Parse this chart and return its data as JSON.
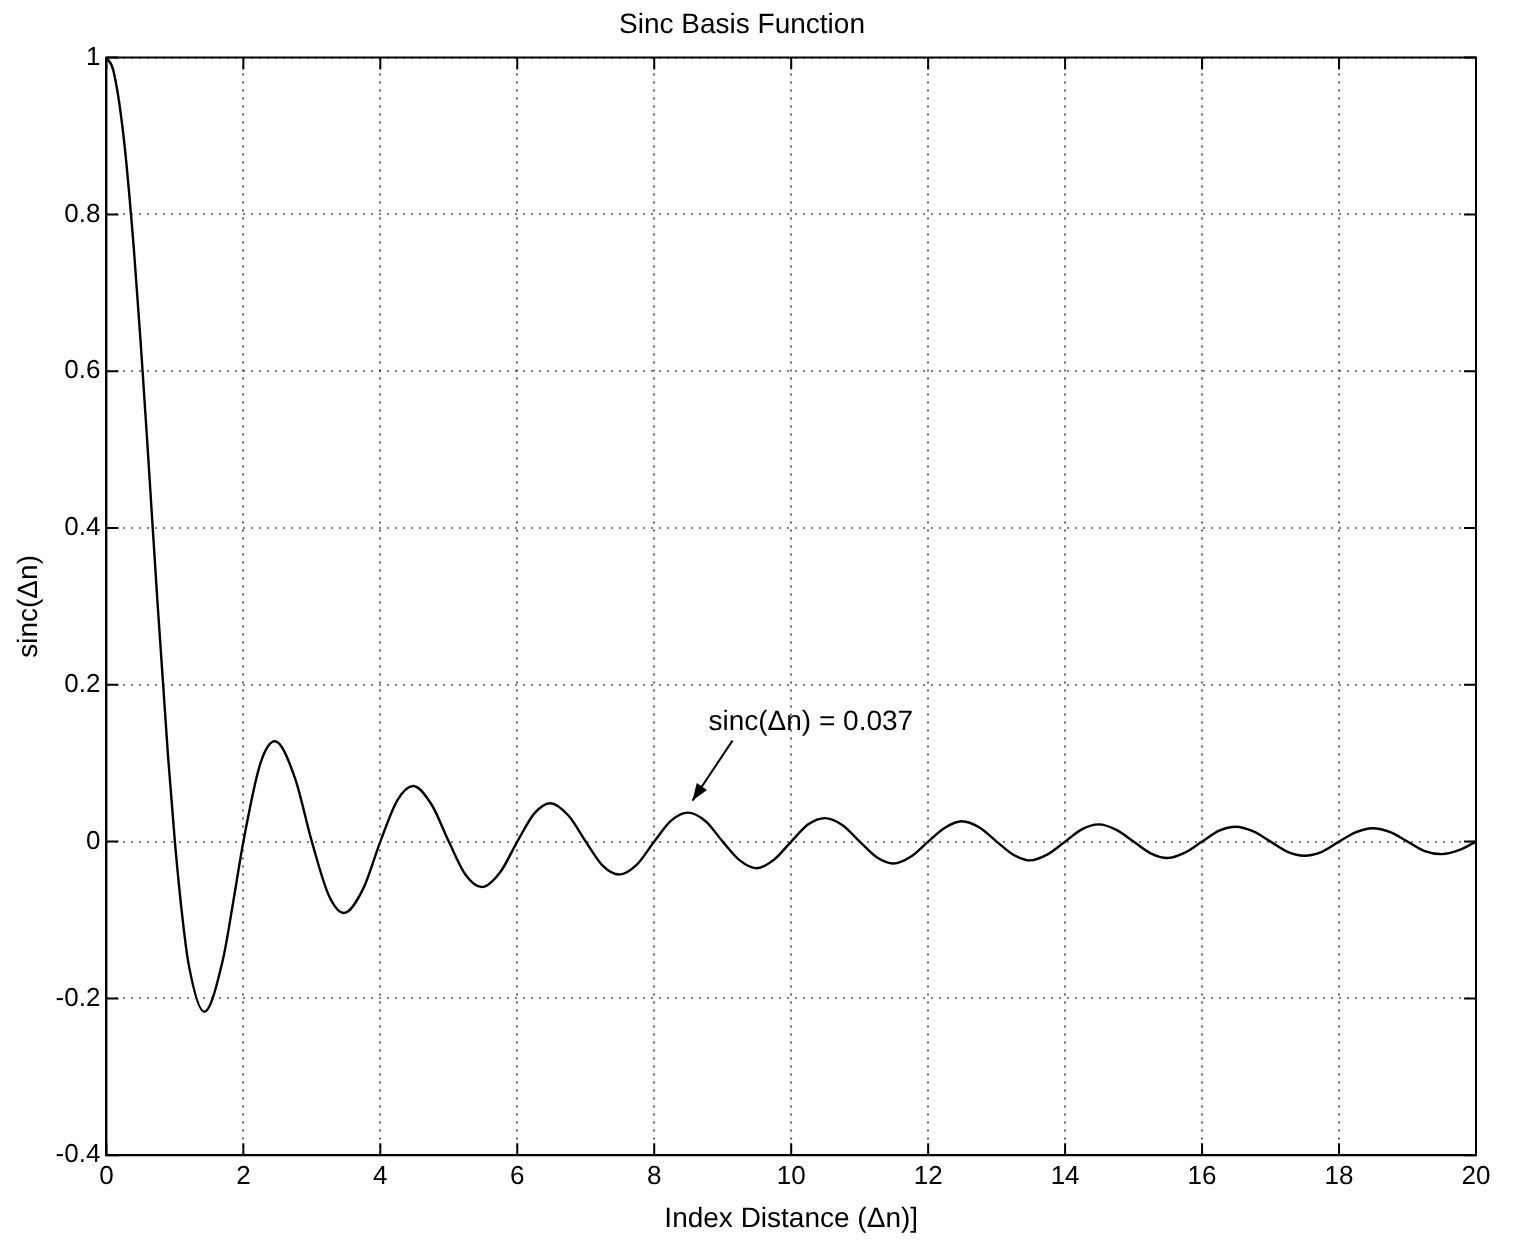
{
  "chart_data": {
    "type": "line",
    "title": "Sinc Basis Function",
    "xlabel": "Index Distance (Δn)]",
    "ylabel": "sinc(Δn)",
    "x": [
      0,
      0.1,
      0.25,
      0.4,
      0.5,
      0.6,
      0.75,
      0.9,
      1,
      1.1,
      1.2,
      1.43,
      1.7,
      1.85,
      2,
      2.25,
      2.46,
      2.75,
      3,
      3.25,
      3.47,
      3.75,
      4,
      4.25,
      4.48,
      4.75,
      5,
      5.25,
      5.48,
      5.75,
      6,
      6.25,
      6.48,
      6.75,
      7,
      7.25,
      7.49,
      7.75,
      8,
      8.25,
      8.49,
      8.75,
      9,
      9.25,
      9.49,
      9.75,
      10,
      10.25,
      10.49,
      10.75,
      11,
      11.25,
      11.49,
      11.75,
      12,
      12.25,
      12.49,
      12.75,
      13,
      13.25,
      13.49,
      13.75,
      14,
      14.25,
      14.49,
      14.75,
      15,
      15.25,
      15.49,
      15.75,
      16,
      16.25,
      16.49,
      16.75,
      17,
      17.25,
      17.49,
      17.75,
      18,
      18.25,
      18.49,
      18.75,
      19,
      19.25,
      19.5,
      19.75,
      20
    ],
    "series": [
      {
        "color": "#000000",
        "values": [
          1,
          0.984,
          0.9,
          0.757,
          0.637,
          0.505,
          0.3,
          0.109,
          0,
          -0.089,
          -0.156,
          -0.217,
          -0.151,
          -0.078,
          0,
          0.1,
          0.128,
          0.082,
          0,
          -0.069,
          -0.091,
          -0.06,
          0,
          0.053,
          0.071,
          0.047,
          0,
          -0.043,
          -0.058,
          -0.039,
          0,
          0.036,
          0.049,
          0.033,
          0,
          -0.031,
          -0.042,
          -0.029,
          0,
          0.027,
          0.037,
          0.026,
          0,
          -0.024,
          -0.034,
          -0.023,
          0,
          0.022,
          0.03,
          0.021,
          0,
          -0.02,
          -0.028,
          -0.019,
          0,
          0.018,
          0.026,
          0.018,
          0,
          -0.017,
          -0.024,
          -0.016,
          0,
          0.016,
          0.022,
          0.015,
          0,
          -0.015,
          -0.021,
          -0.014,
          0,
          0.014,
          0.019,
          0.013,
          0,
          -0.013,
          -0.018,
          -0.013,
          0,
          0.012,
          0.017,
          0.012,
          0,
          -0.012,
          -0.016,
          -0.011,
          0
        ]
      }
    ],
    "xlim": [
      0,
      20
    ],
    "xticks": [
      0,
      2,
      4,
      6,
      8,
      10,
      12,
      14,
      16,
      18,
      20
    ],
    "ylim": [
      -0.4,
      1
    ],
    "yticks": [
      -0.4,
      -0.2,
      0,
      0.2,
      0.4,
      0.6,
      0.8,
      1
    ],
    "grid": true,
    "legend": false,
    "marker": "none",
    "line_style": "solid",
    "annotations": [
      {
        "text": "sinc(Δn) = 0.037",
        "x": 8.5,
        "y": 0.037
      }
    ]
  }
}
